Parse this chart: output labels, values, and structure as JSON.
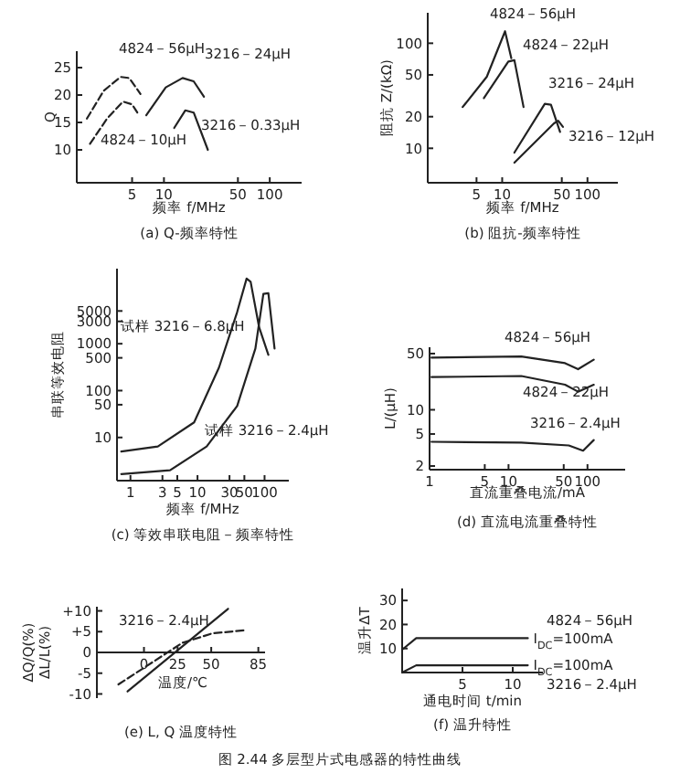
{
  "chart_data": [
    {
      "type": "line",
      "title": "(a) Q-频率特性",
      "xlabel": "频率 f/MHz",
      "ylabel": "Q",
      "log": "x",
      "xlim": [
        1.5,
        200
      ],
      "xticks": [
        5,
        10,
        50,
        100
      ],
      "ylim": [
        4,
        28
      ],
      "yticks": [
        10,
        15,
        20,
        25
      ],
      "series": [
        {
          "name": "4824－56μH",
          "color": "#222222",
          "line_style": "dashed",
          "x": [
            1.87,
            2.7,
            3.9,
            4.7,
            6.0
          ],
          "values": [
            15.7,
            20.8,
            23.3,
            23.1,
            20.2
          ]
        },
        {
          "name": "3216－24μH",
          "color": "#222222",
          "line_style": "solid",
          "x": [
            6.8,
            10.4,
            15,
            19.1,
            23.9
          ],
          "values": [
            16.3,
            21.4,
            23.1,
            22.5,
            19.7
          ]
        },
        {
          "name": "3216－0.33μH",
          "color": "#222222",
          "line_style": "solid",
          "x": [
            12.5,
            15.9,
            19.1,
            26
          ],
          "values": [
            14,
            17.2,
            16.8,
            10
          ]
        },
        {
          "name": "4824－10μH",
          "color": "#222222",
          "line_style": "dashed",
          "x": [
            2.0,
            2.9,
            4.1,
            5.0,
            5.6
          ],
          "values": [
            11.1,
            15.7,
            18.8,
            18.3,
            16.8
          ]
        }
      ]
    },
    {
      "type": "line",
      "title": "(b) 阻抗-频率特性",
      "xlabel": "频率 f/MHz",
      "ylabel": "阻抗 Z/(kΩ)",
      "log": "xy",
      "xlim": [
        1.34,
        227
      ],
      "xticks": [
        5,
        10,
        50,
        100
      ],
      "ylim": [
        4.7,
        195
      ],
      "yticks": [
        10,
        20,
        50,
        100
      ],
      "series": [
        {
          "name": "4824－56μH",
          "color": "#222222",
          "line_style": "solid",
          "x": [
            3.44,
            6.6,
            10.8,
            12.8
          ],
          "values": [
            24.7,
            48,
            130,
            72
          ]
        },
        {
          "name": "4824－22μH",
          "color": "#222222",
          "line_style": "solid",
          "x": [
            6.1,
            11.8,
            13.9,
            17.8
          ],
          "values": [
            30,
            67,
            69,
            24.7
          ]
        },
        {
          "name": "3216－24μH",
          "color": "#222222",
          "line_style": "solid",
          "x": [
            13.9,
            31.6,
            37.3,
            47.7
          ],
          "values": [
            9.1,
            26.5,
            26,
            14.3
          ]
        },
        {
          "name": "3216－12μH",
          "color": "#222222",
          "line_style": "solid",
          "x": [
            13.9,
            40.5,
            45.4,
            51.6
          ],
          "values": [
            7.3,
            17.3,
            18.3,
            16
          ]
        }
      ]
    },
    {
      "type": "line",
      "title": "(c) 等效串联电阻－频率特性",
      "xlabel": "频率 f/MHz",
      "ylabel": "串联等效电阻",
      "log": "xy",
      "xlim": [
        0.63,
        230
      ],
      "xticks": [
        1,
        3,
        5,
        10,
        30,
        50,
        100
      ],
      "ylim": [
        1.2,
        40000
      ],
      "yticks": [
        10,
        50,
        100,
        500,
        1000,
        3000,
        5000
      ],
      "series": [
        {
          "name": "试样 3216－6.8μH",
          "color": "#222222",
          "line_style": "solid",
          "x": [
            0.73,
            2.56,
            8.9,
            20.9,
            39,
            54,
            62,
            83,
            114
          ],
          "values": [
            5,
            6.4,
            21,
            310,
            4730,
            24500,
            21000,
            2240,
            580
          ]
        },
        {
          "name": "试样 3216－2.4μH",
          "color": "#222222",
          "line_style": "solid",
          "x": [
            0.73,
            3.9,
            13.7,
            39,
            73,
            96,
            114,
            141
          ],
          "values": [
            1.66,
            2,
            6.4,
            47,
            790,
            11600,
            12000,
            790
          ]
        }
      ]
    },
    {
      "type": "line",
      "title": "(d) 直流电流重叠特性",
      "xlabel": "直流重叠电流/mA",
      "ylabel": "L/(μH)",
      "log": "xy",
      "xlim": [
        1,
        300
      ],
      "xticks": [
        1,
        5,
        10,
        50,
        100
      ],
      "ylim": [
        1.8,
        60
      ],
      "yticks": [
        2,
        5,
        10,
        50
      ],
      "series": [
        {
          "name": "4824－56μH",
          "color": "#222222",
          "line_style": "solid",
          "x": [
            1.06,
            14.5,
            52,
            76,
            120
          ],
          "values": [
            44.5,
            46,
            38,
            32,
            42
          ]
        },
        {
          "name": "4824－22μH",
          "color": "#222222",
          "line_style": "solid",
          "x": [
            1.06,
            14.5,
            52,
            76,
            120
          ],
          "values": [
            25.5,
            26.3,
            20.5,
            16.8,
            20.5
          ]
        },
        {
          "name": "3216－2.4μH",
          "color": "#222222",
          "line_style": "solid",
          "x": [
            1.06,
            14.5,
            58,
            88,
            120
          ],
          "values": [
            4,
            3.9,
            3.6,
            3.1,
            4.2
          ]
        }
      ]
    },
    {
      "type": "line",
      "title": "(e) L, Q 温度特性",
      "xlabel": "温度/℃",
      "ylabel": "ΔQ/Q(%)\nΔL/L(%)",
      "xlim": [
        -35,
        90
      ],
      "xticks": [
        0,
        25,
        50,
        85
      ],
      "ylim": [
        -11,
        11
      ],
      "yticks": [
        {
          "value": 10,
          "label": "+10"
        },
        {
          "value": 5,
          "label": "+5"
        },
        0,
        -5,
        -10
      ],
      "annotations": [
        "3216－2.4μH"
      ],
      "series": [
        {
          "color": "#222222",
          "line_style": "solid",
          "x": [
            -12.2,
            62.5
          ],
          "values": [
            -9.4,
            10.5
          ]
        },
        {
          "color": "#222222",
          "line_style": "dashed",
          "x": [
            -19,
            28.5,
            51,
            74
          ],
          "values": [
            -7.7,
            2.3,
            4.6,
            5.3
          ]
        }
      ]
    },
    {
      "type": "line",
      "title": "(f) 温升特性",
      "xlabel": "通电时间 t/min",
      "ylabel": "温升ΔT",
      "xlim": [
        -1,
        13
      ],
      "xticks": [
        5,
        10
      ],
      "ylim": [
        0,
        35
      ],
      "yticks": [
        10,
        20,
        30
      ],
      "annotations": [
        {
          "text": "I$_{DC}$=100mA",
          "x": 11.5,
          "y": 14.3
        },
        {
          "text": "I$_{DC}$=100mA",
          "x": 11.5,
          "y": 3
        },
        "图 2.44 多层型片式电感器的特性曲线"
      ],
      "series": [
        {
          "name": "4824－56μH",
          "color": "#222222",
          "line_style": "solid",
          "x": [
            -1,
            0.4,
            11.5
          ],
          "values": [
            9.5,
            14.3,
            14.3
          ]
        },
        {
          "name": "3216－2.4μH",
          "color": "#222222",
          "line_style": "solid",
          "x": [
            -1,
            0.4,
            11.5
          ],
          "values": [
            0,
            3,
            3
          ]
        }
      ]
    }
  ]
}
